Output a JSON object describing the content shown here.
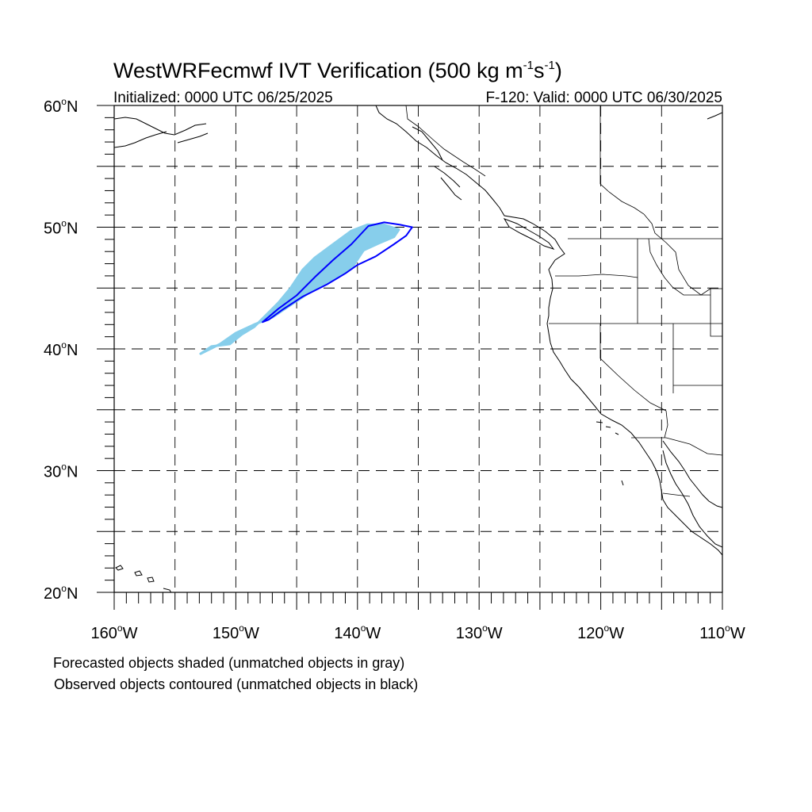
{
  "figure": {
    "title_main": "WestWRFecmwf IVT Verification (500 kg m",
    "title_sup1": "-1",
    "title_mid": "s",
    "title_sup2": "-1",
    "title_end": ")",
    "init_text": "Initialized: 0000 UTC 06/25/2025",
    "valid_text": "F-120: Valid: 0000 UTC 06/30/2025"
  },
  "axes": {
    "lon_range": [
      -160,
      -110
    ],
    "lat_range": [
      20,
      60
    ],
    "lon_ticks": [
      {
        "value": -160,
        "label": "160"
      },
      {
        "value": -150,
        "label": "150"
      },
      {
        "value": -140,
        "label": "140"
      },
      {
        "value": -130,
        "label": "130"
      },
      {
        "value": -120,
        "label": "120"
      },
      {
        "value": -110,
        "label": "110"
      }
    ],
    "lat_ticks": [
      {
        "value": 60,
        "label": "60"
      },
      {
        "value": 50,
        "label": "50"
      },
      {
        "value": 40,
        "label": "40"
      },
      {
        "value": 30,
        "label": "30"
      },
      {
        "value": 20,
        "label": "20"
      }
    ],
    "degree_symbol": "o",
    "west_suffix": "W",
    "north_suffix": "N",
    "grid_spacing_deg": 5,
    "grid_style": "dashed"
  },
  "colors": {
    "forecast_fill": "#87ceeb",
    "observed_contour": "#0000ff",
    "coast": "#000000",
    "grid": "#000000"
  },
  "objects": {
    "forecast_object": [
      [
        -152.9,
        39.6
      ],
      [
        -152.0,
        40.2
      ],
      [
        -150.5,
        40.4
      ],
      [
        -149.5,
        41.2
      ],
      [
        -148.5,
        41.8
      ],
      [
        -147.5,
        42.8
      ],
      [
        -146.5,
        43.8
      ],
      [
        -145.5,
        45.0
      ],
      [
        -144.5,
        46.5
      ],
      [
        -143.5,
        47.5
      ],
      [
        -142.0,
        48.6
      ],
      [
        -140.5,
        49.7
      ],
      [
        -139.2,
        50.2
      ],
      [
        -137.8,
        50.2
      ],
      [
        -136.6,
        49.8
      ],
      [
        -137.0,
        49.2
      ],
      [
        -138.2,
        48.7
      ],
      [
        -139.5,
        48.1
      ],
      [
        -140.5,
        46.6
      ],
      [
        -141.5,
        46.0
      ],
      [
        -142.8,
        45.3
      ],
      [
        -144.0,
        44.6
      ],
      [
        -145.5,
        43.6
      ],
      [
        -147.0,
        42.6
      ],
      [
        -148.5,
        42.0
      ],
      [
        -150.0,
        41.3
      ],
      [
        -151.3,
        40.4
      ],
      [
        -152.3,
        39.9
      ]
    ],
    "observed_object": [
      [
        -147.8,
        42.2
      ],
      [
        -146.5,
        43.3
      ],
      [
        -145.0,
        44.4
      ],
      [
        -143.5,
        45.9
      ],
      [
        -142.0,
        47.3
      ],
      [
        -140.5,
        48.6
      ],
      [
        -139.1,
        50.1
      ],
      [
        -137.8,
        50.4
      ],
      [
        -136.5,
        50.2
      ],
      [
        -135.5,
        50.0
      ],
      [
        -136.0,
        49.3
      ],
      [
        -137.0,
        48.6
      ],
      [
        -138.5,
        47.6
      ],
      [
        -140.0,
        46.9
      ],
      [
        -141.0,
        46.2
      ],
      [
        -142.5,
        45.3
      ],
      [
        -144.5,
        44.3
      ],
      [
        -146.2,
        43.2
      ],
      [
        -147.3,
        42.4
      ]
    ]
  },
  "notes": {
    "forecast_note": "Forecasted objects shaded (unmatched objects in gray)",
    "observed_note": "Observed objects contoured (unmatched objects in black)"
  }
}
